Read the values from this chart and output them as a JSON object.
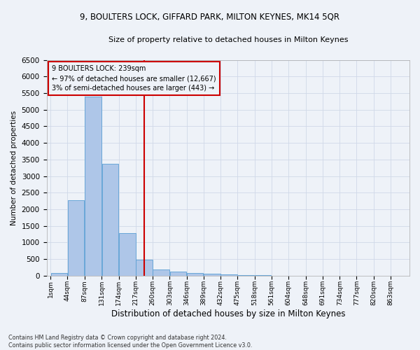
{
  "title_line1": "9, BOULTERS LOCK, GIFFARD PARK, MILTON KEYNES, MK14 5QR",
  "title_line2": "Size of property relative to detached houses in Milton Keynes",
  "xlabel": "Distribution of detached houses by size in Milton Keynes",
  "ylabel": "Number of detached properties",
  "footer_line1": "Contains HM Land Registry data © Crown copyright and database right 2024.",
  "footer_line2": "Contains public sector information licensed under the Open Government Licence v3.0.",
  "annotation_title": "9 BOULTERS LOCK: 239sqm",
  "annotation_line1": "← 97% of detached houses are smaller (12,667)",
  "annotation_line2": "3% of semi-detached houses are larger (443) →",
  "property_size_sqm": 239,
  "categories": [
    "1sqm",
    "44sqm",
    "87sqm",
    "131sqm",
    "174sqm",
    "217sqm",
    "260sqm",
    "303sqm",
    "346sqm",
    "389sqm",
    "432sqm",
    "475sqm",
    "518sqm",
    "561sqm",
    "604sqm",
    "648sqm",
    "691sqm",
    "734sqm",
    "777sqm",
    "820sqm",
    "863sqm"
  ],
  "bin_edges": [
    1,
    44,
    87,
    131,
    174,
    217,
    260,
    303,
    346,
    389,
    432,
    475,
    518,
    561,
    604,
    648,
    691,
    734,
    777,
    820,
    863,
    906
  ],
  "values": [
    75,
    2280,
    5400,
    3360,
    1290,
    490,
    185,
    125,
    85,
    55,
    35,
    20,
    10,
    5,
    3,
    2,
    1,
    1,
    1,
    0,
    0
  ],
  "bar_color": "#aec6e8",
  "bar_edge_color": "#5a9fd4",
  "vline_color": "#cc0000",
  "vline_x": 239,
  "annotation_box_edge_color": "#cc0000",
  "grid_color": "#d0d8e8",
  "background_color": "#eef2f8",
  "ylim": [
    0,
    6500
  ],
  "yticks": [
    0,
    500,
    1000,
    1500,
    2000,
    2500,
    3000,
    3500,
    4000,
    4500,
    5000,
    5500,
    6000,
    6500
  ]
}
